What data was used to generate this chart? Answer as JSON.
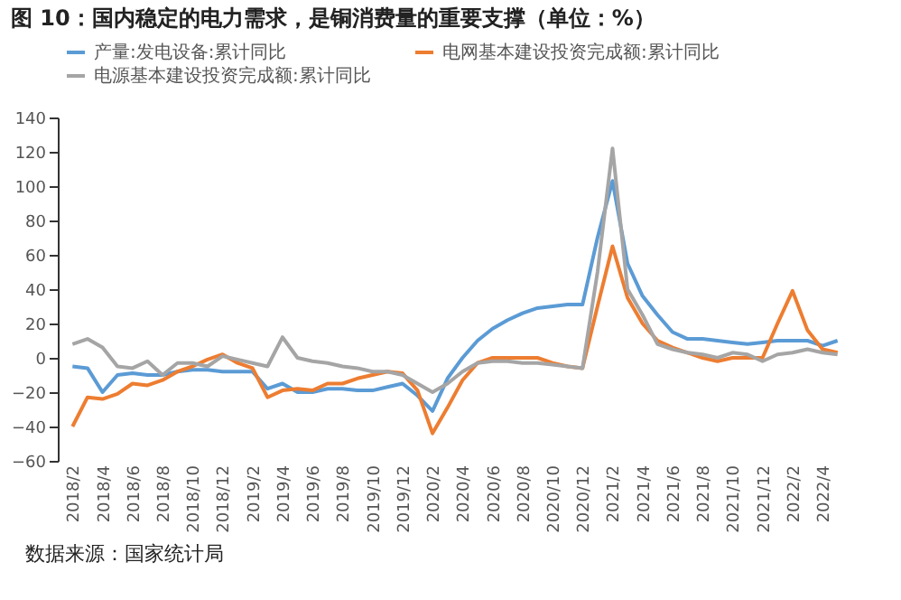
{
  "chart_data": {
    "type": "line",
    "title": "图 10：国内稳定的电力需求，是铜消费量的重要支撑（单位：%）",
    "annotations": [
      "数据来源：国家统计局"
    ],
    "categories": [
      "2018/2",
      null,
      "2018/4",
      null,
      "2018/6",
      null,
      "2018/8",
      null,
      "2018/10",
      null,
      "2018/12",
      null,
      "2019/2",
      null,
      "2019/4",
      null,
      "2019/6",
      null,
      "2019/8",
      null,
      "2019/10",
      null,
      "2019/12",
      null,
      "2020/2",
      null,
      "2020/4",
      null,
      "2020/6",
      null,
      "2020/8",
      null,
      "2020/10",
      null,
      "2020/12",
      null,
      "2021/2",
      null,
      "2021/4",
      null,
      "2021/6",
      null,
      "2021/8",
      null,
      "2021/10",
      null,
      "2021/12",
      null,
      "2022/2",
      null,
      "2022/4",
      null
    ],
    "series": [
      {
        "name": "产量:发电设备:累计同比",
        "color": "#5b9bd5",
        "values": [
          -5,
          -6,
          -20,
          -10,
          -9,
          -10,
          -10,
          -8,
          -7,
          -7,
          -8,
          -8,
          -8,
          -18,
          -15,
          -20,
          -20,
          -18,
          -18,
          -19,
          -19,
          -17,
          -15,
          -22,
          -31,
          -12,
          0,
          10,
          17,
          22,
          26,
          29,
          30,
          31,
          31,
          70,
          103,
          55,
          36,
          25,
          15,
          11,
          11,
          10,
          9,
          8,
          9,
          10,
          10,
          10,
          7,
          10
        ]
      },
      {
        "name": "电网基本建设投资完成额:累计同比",
        "color": "#ed7d31",
        "values": [
          -40,
          -23,
          -24,
          -21,
          -15,
          -16,
          -13,
          -8,
          -5,
          -1,
          2,
          -3,
          -6,
          -23,
          -19,
          -18,
          -19,
          -15,
          -15,
          -12,
          -10,
          -8,
          -9,
          -19,
          -44,
          -29,
          -13,
          -3,
          0,
          0,
          0,
          0,
          -3,
          -5,
          -6,
          30,
          65,
          35,
          20,
          10,
          6,
          3,
          0,
          -2,
          0,
          0,
          0,
          20,
          39,
          16,
          5,
          3
        ]
      },
      {
        "name": "电源基本建设投资完成额:累计同比",
        "color": "#a5a5a5",
        "values": [
          8,
          11,
          6,
          -5,
          -6,
          -2,
          -10,
          -3,
          -3,
          -5,
          1,
          -1,
          -3,
          -5,
          12,
          0,
          -2,
          -3,
          -5,
          -6,
          -8,
          -8,
          -10,
          -15,
          -20,
          -15,
          -8,
          -3,
          -2,
          -2,
          -3,
          -3,
          -4,
          -5,
          -6,
          50,
          122,
          40,
          25,
          8,
          5,
          3,
          2,
          0,
          3,
          2,
          -2,
          2,
          3,
          5,
          3,
          2
        ]
      }
    ],
    "ylim": [
      -60,
      140
    ],
    "yticks": [
      -60,
      -40,
      -20,
      0,
      20,
      40,
      60,
      80,
      100,
      120,
      140
    ],
    "grid": false,
    "legend": "top",
    "marker": "none",
    "line_style": "solid"
  }
}
